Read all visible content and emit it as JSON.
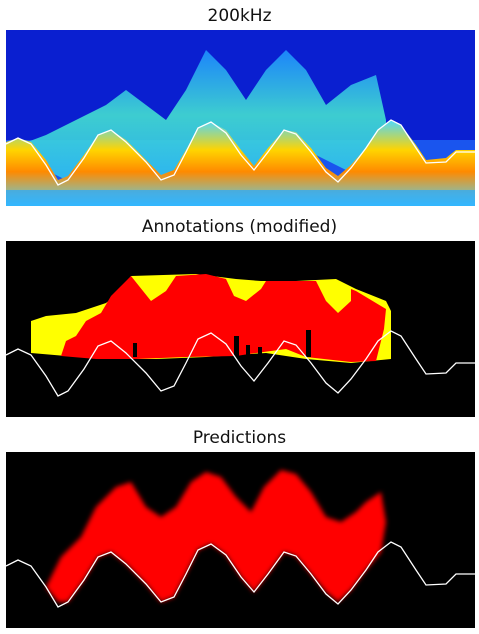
{
  "panels": [
    {
      "title": "200kHz"
    },
    {
      "title": "Annotations (modified)"
    },
    {
      "title": "Predictions"
    }
  ],
  "colors": {
    "background": "#000000",
    "echogram_low": "#0a1fd0",
    "echogram_high": "#ff8a00",
    "annotation_red": "#ff0000",
    "annotation_yellow": "#ffff00",
    "prediction_red": "#ff0000",
    "line": "#ffffff"
  }
}
